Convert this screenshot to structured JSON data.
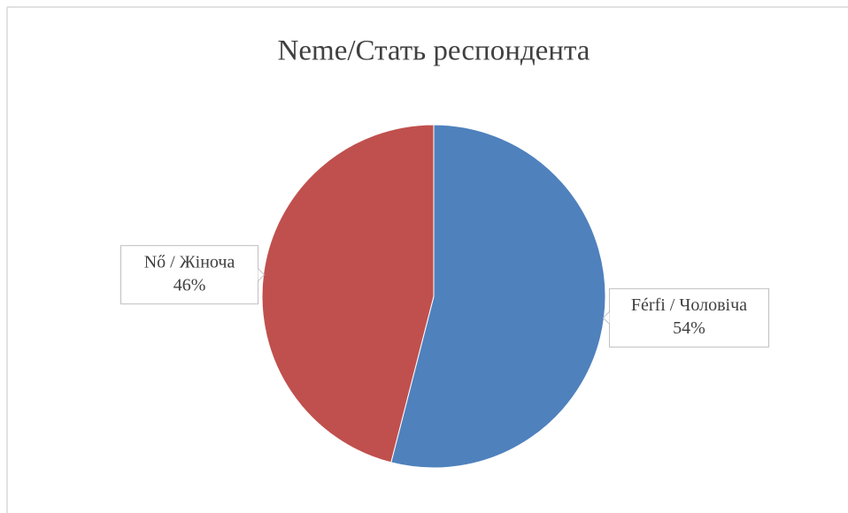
{
  "chart_data": {
    "type": "pie",
    "title": "Neme/Стать респондента",
    "categories": [
      "Férfi / Чоловіча",
      "Nő / Жіноча"
    ],
    "values": [
      54,
      46
    ],
    "value_labels": [
      "54%",
      "46%"
    ],
    "colors": [
      "#4f81bd",
      "#c0504d"
    ]
  }
}
